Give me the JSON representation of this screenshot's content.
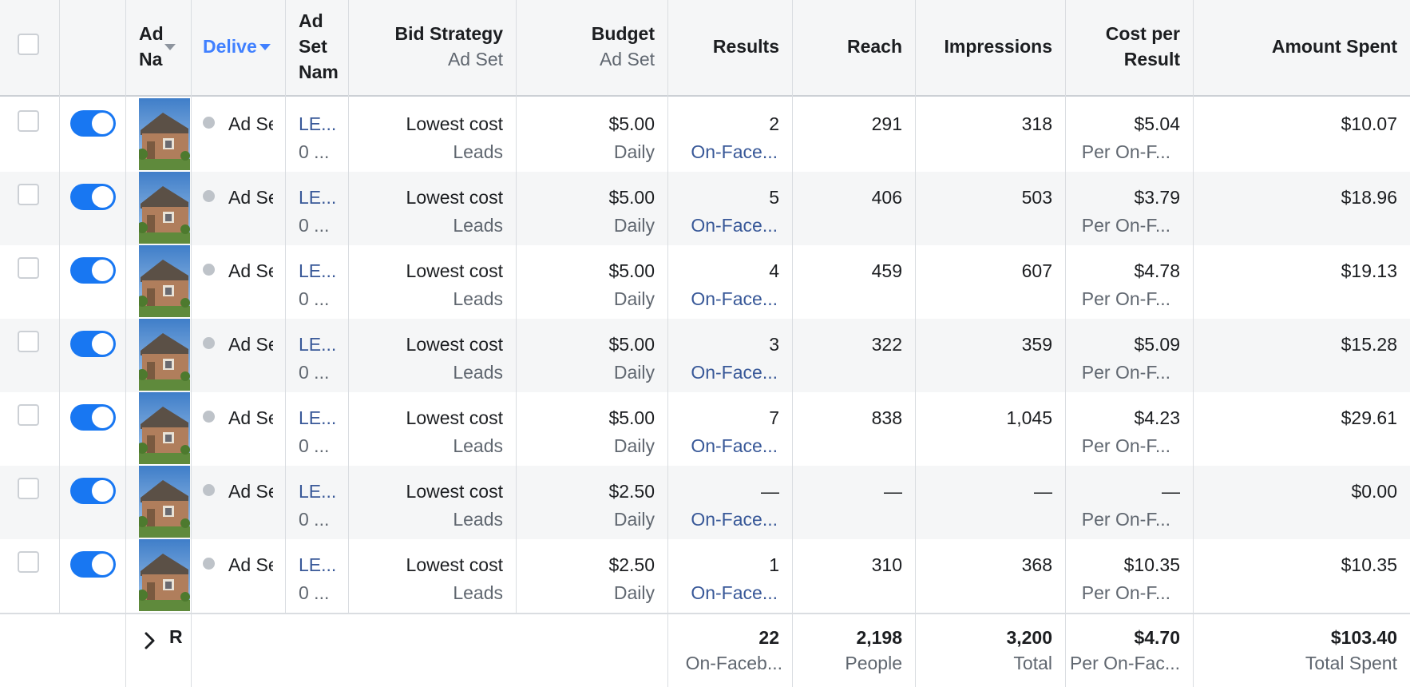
{
  "header": {
    "ad_name": [
      "Ad",
      "Na"
    ],
    "delivery": "Delive",
    "ad_set_name": [
      "Ad",
      "Set",
      "Nam"
    ],
    "bid_strategy": {
      "label": "Bid Strategy",
      "sub": "Ad Set"
    },
    "budget": {
      "label": "Budget",
      "sub": "Ad Set"
    },
    "results": "Results",
    "reach": "Reach",
    "impressions": "Impressions",
    "cost_per_result": [
      "Cost per",
      "Result"
    ],
    "amount_spent": "Amount Spent"
  },
  "rows": [
    {
      "ad_name": "Ad Se",
      "adset_link": "LE...",
      "adset_sub": "0 ...",
      "bid": "Lowest cost",
      "bid_sub": "Leads",
      "budget": "$5.00",
      "budget_sub": "Daily",
      "results": "2",
      "results_sub": "On-Face...",
      "reach": "291",
      "impressions": "318",
      "cpr": "$5.04",
      "cpr_sub": "Per On-F...",
      "spent": "$10.07"
    },
    {
      "ad_name": "Ad Se",
      "adset_link": "LE...",
      "adset_sub": "0 ...",
      "bid": "Lowest cost",
      "bid_sub": "Leads",
      "budget": "$5.00",
      "budget_sub": "Daily",
      "results": "5",
      "results_sub": "On-Face...",
      "reach": "406",
      "impressions": "503",
      "cpr": "$3.79",
      "cpr_sub": "Per On-F...",
      "spent": "$18.96"
    },
    {
      "ad_name": "Ad Se",
      "adset_link": "LE...",
      "adset_sub": "0 ...",
      "bid": "Lowest cost",
      "bid_sub": "Leads",
      "budget": "$5.00",
      "budget_sub": "Daily",
      "results": "4",
      "results_sub": "On-Face...",
      "reach": "459",
      "impressions": "607",
      "cpr": "$4.78",
      "cpr_sub": "Per On-F...",
      "spent": "$19.13"
    },
    {
      "ad_name": "Ad Se",
      "adset_link": "LE...",
      "adset_sub": "0 ...",
      "bid": "Lowest cost",
      "bid_sub": "Leads",
      "budget": "$5.00",
      "budget_sub": "Daily",
      "results": "3",
      "results_sub": "On-Face...",
      "reach": "322",
      "impressions": "359",
      "cpr": "$5.09",
      "cpr_sub": "Per On-F...",
      "spent": "$15.28"
    },
    {
      "ad_name": "Ad Se",
      "adset_link": "LE...",
      "adset_sub": "0 ...",
      "bid": "Lowest cost",
      "bid_sub": "Leads",
      "budget": "$5.00",
      "budget_sub": "Daily",
      "results": "7",
      "results_sub": "On-Face...",
      "reach": "838",
      "impressions": "1,045",
      "cpr": "$4.23",
      "cpr_sub": "Per On-F...",
      "spent": "$29.61"
    },
    {
      "ad_name": "Ad Se",
      "adset_link": "LE...",
      "adset_sub": "0 ...",
      "bid": "Lowest cost",
      "bid_sub": "Leads",
      "budget": "$2.50",
      "budget_sub": "Daily",
      "results": "—",
      "results_sub": "On-Face...",
      "reach": "—",
      "impressions": "—",
      "cpr": "—",
      "cpr_sub": "Per On-F...",
      "spent": "$0.00"
    },
    {
      "ad_name": "Ad Se",
      "adset_link": "LE...",
      "adset_sub": "0 ...",
      "bid": "Lowest cost",
      "bid_sub": "Leads",
      "budget": "$2.50",
      "budget_sub": "Daily",
      "results": "1",
      "results_sub": "On-Face...",
      "reach": "310",
      "impressions": "368",
      "cpr": "$10.35",
      "cpr_sub": "Per On-F...",
      "spent": "$10.35"
    }
  ],
  "footer": {
    "label": "R",
    "results": "22",
    "results_sub": "On-Faceb...",
    "reach": "2,198",
    "reach_sub": "People",
    "impressions": "3,200",
    "impressions_sub": "Total",
    "cpr": "$4.70",
    "cpr_sub": "Per On-Fac...",
    "spent": "$103.40",
    "spent_sub": "Total Spent"
  },
  "colors": {
    "toggle_on": "#1877f2",
    "link": "#385898",
    "sort_active": "#4080ff"
  }
}
